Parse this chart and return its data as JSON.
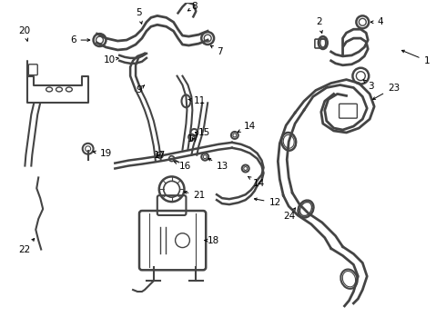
{
  "bg_color": "#ffffff",
  "line_color": "#444444",
  "fig_width": 4.9,
  "fig_height": 3.6,
  "dpi": 100,
  "font_size": 7.5,
  "arrow_lw": 0.7,
  "arrow_ms": 5
}
